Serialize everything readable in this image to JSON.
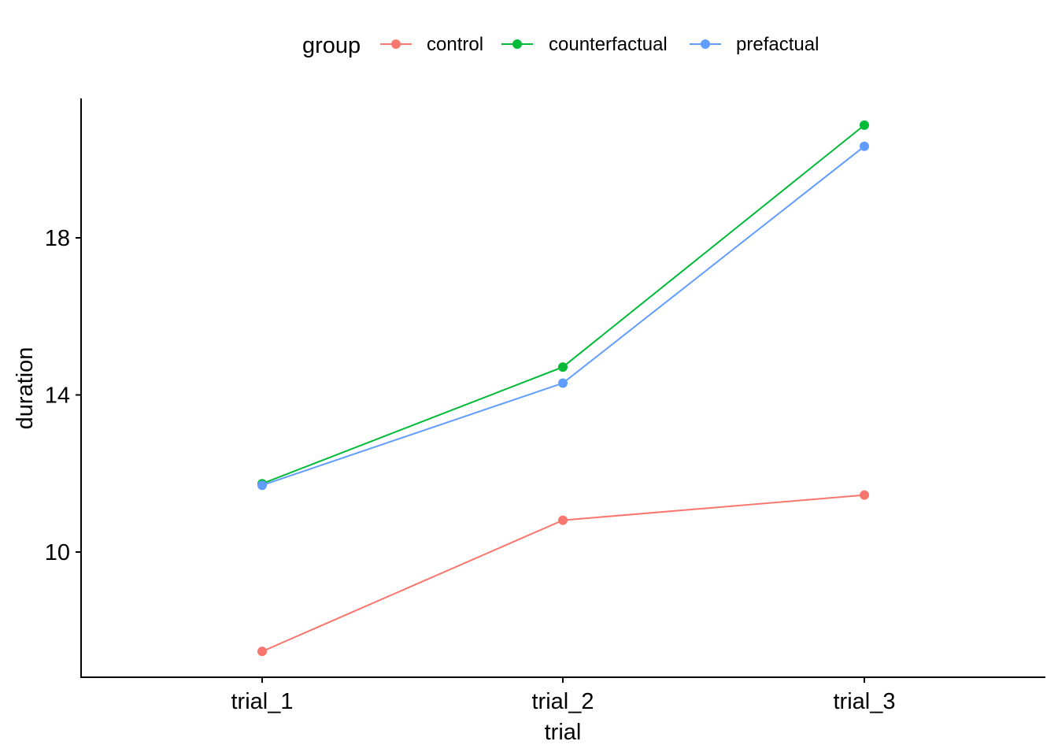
{
  "chart_data": {
    "type": "line",
    "xlabel": "trial",
    "ylabel": "duration",
    "categories": [
      "trial_1",
      "trial_2",
      "trial_3"
    ],
    "ylim": [
      6.8,
      21.5
    ],
    "yticks": [
      10,
      14,
      18
    ],
    "grid": false,
    "legend": {
      "title": "group",
      "position": "top"
    },
    "series": [
      {
        "name": "control",
        "color": "#F8766D",
        "values": [
          7.47,
          10.81,
          11.45
        ]
      },
      {
        "name": "counterfactual",
        "color": "#00BA38",
        "values": [
          11.74,
          14.71,
          20.87
        ]
      },
      {
        "name": "prefactual",
        "color": "#619CFF",
        "values": [
          11.7,
          14.3,
          20.33
        ]
      }
    ]
  }
}
